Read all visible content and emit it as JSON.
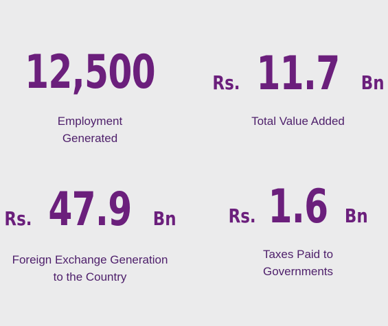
{
  "stats": [
    {
      "prefix": "",
      "value": "12,500",
      "suffix": "",
      "caption_lines": [
        "Employment",
        "Generated"
      ]
    },
    {
      "prefix": "Rs.",
      "value": "11.7",
      "suffix": "Bn",
      "caption_lines": [
        "Total Value Added"
      ]
    },
    {
      "prefix": "Rs.",
      "value": "47.9",
      "suffix": "Bn",
      "caption_lines": [
        "Foreign Exchange Generation",
        "to the Country"
      ]
    },
    {
      "prefix": "Rs.",
      "value": "1.6",
      "suffix": "Bn",
      "caption_lines": [
        "Taxes Paid to",
        "Governments"
      ]
    }
  ],
  "colors": {
    "background": "#ebebec",
    "figure": "#6b1f7c",
    "caption": "#4d1e6a"
  }
}
